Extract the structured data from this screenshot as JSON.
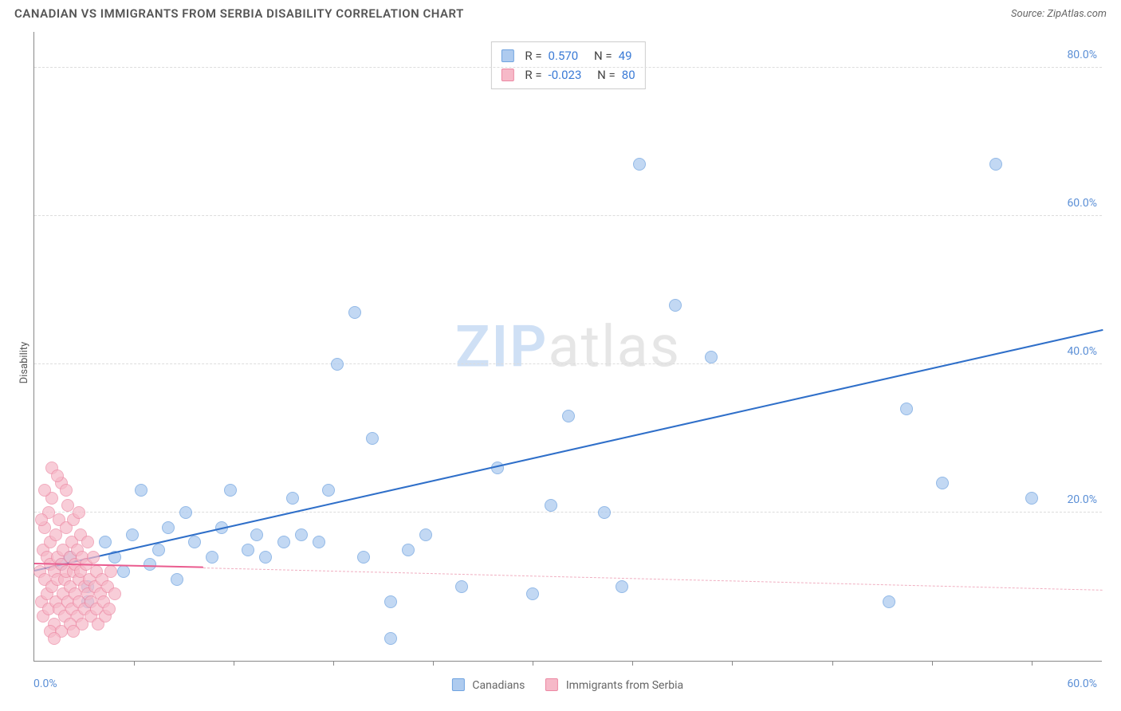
{
  "title": "CANADIAN VS IMMIGRANTS FROM SERBIA DISABILITY CORRELATION CHART",
  "source": "Source: ZipAtlas.com",
  "ylabel": "Disability",
  "watermark": {
    "zip": "ZIP",
    "atlas": "atlas"
  },
  "chart": {
    "type": "scatter",
    "background_color": "#ffffff",
    "grid_color": "#dddddd",
    "axis_color": "#888888",
    "marker_radius": 8,
    "marker_stroke_width": 1.2,
    "xlim": [
      0,
      60
    ],
    "ylim": [
      0,
      85
    ],
    "yticks": [
      20,
      40,
      60,
      80
    ],
    "ytick_labels": [
      "20.0%",
      "40.0%",
      "60.0%",
      "80.0%"
    ],
    "x_origin_label": "0.0%",
    "x_end_label": "60.0%",
    "xticks_minor": [
      5.6,
      11.2,
      16.8,
      22.4,
      28.0,
      33.6,
      39.2,
      44.8,
      50.4,
      56.0
    ],
    "tick_color": "#5b8fd6",
    "tick_fontsize": 14,
    "series": [
      {
        "name": "Canadians",
        "fill": "#aecbef",
        "stroke": "#6fa3e0",
        "opacity": 0.75,
        "trend": {
          "x1": 0,
          "y1": 12,
          "x2": 60,
          "y2": 44.5,
          "color": "#2f6fc9",
          "style": "solid",
          "width": 2
        },
        "r_value": "0.570",
        "n_value": "49",
        "points": [
          [
            1.5,
            13
          ],
          [
            2,
            14
          ],
          [
            3,
            10
          ],
          [
            3,
            8
          ],
          [
            4,
            16
          ],
          [
            4.5,
            14
          ],
          [
            5,
            12
          ],
          [
            5.5,
            17
          ],
          [
            6,
            23
          ],
          [
            6.5,
            13
          ],
          [
            7,
            15
          ],
          [
            7.5,
            18
          ],
          [
            8,
            11
          ],
          [
            8.5,
            20
          ],
          [
            9,
            16
          ],
          [
            10,
            14
          ],
          [
            10.5,
            18
          ],
          [
            11,
            23
          ],
          [
            12,
            15
          ],
          [
            12.5,
            17
          ],
          [
            13,
            14
          ],
          [
            14,
            16
          ],
          [
            14.5,
            22
          ],
          [
            15,
            17
          ],
          [
            16,
            16
          ],
          [
            16.5,
            23
          ],
          [
            17,
            40
          ],
          [
            18,
            47
          ],
          [
            18.5,
            14
          ],
          [
            19,
            30
          ],
          [
            20,
            8
          ],
          [
            20,
            3
          ],
          [
            21,
            15
          ],
          [
            22,
            17
          ],
          [
            24,
            10
          ],
          [
            26,
            26
          ],
          [
            28,
            9
          ],
          [
            29,
            21
          ],
          [
            30,
            33
          ],
          [
            32,
            20
          ],
          [
            33,
            10
          ],
          [
            34,
            67
          ],
          [
            36,
            48
          ],
          [
            38,
            41
          ],
          [
            49,
            34
          ],
          [
            51,
            24
          ],
          [
            54,
            67
          ],
          [
            56,
            22
          ],
          [
            48,
            8
          ]
        ]
      },
      {
        "name": "Immigrants from Serbia",
        "fill": "#f6b9c8",
        "stroke": "#ec88a3",
        "opacity": 0.7,
        "trend_solid": {
          "x1": 0,
          "y1": 13,
          "x2": 9.5,
          "y2": 12.5,
          "color": "#ea5c8f",
          "style": "solid",
          "width": 2
        },
        "trend": {
          "x1": 9.5,
          "y1": 12.5,
          "x2": 60,
          "y2": 9.5,
          "color": "#f0aec0",
          "style": "dash",
          "width": 1.5
        },
        "r_value": "-0.023",
        "n_value": "80",
        "points": [
          [
            0.3,
            12
          ],
          [
            0.4,
            8
          ],
          [
            0.5,
            15
          ],
          [
            0.5,
            6
          ],
          [
            0.6,
            18
          ],
          [
            0.6,
            11
          ],
          [
            0.7,
            14
          ],
          [
            0.7,
            9
          ],
          [
            0.8,
            20
          ],
          [
            0.8,
            7
          ],
          [
            0.9,
            13
          ],
          [
            0.9,
            16
          ],
          [
            1.0,
            10
          ],
          [
            1.0,
            22
          ],
          [
            1.1,
            12
          ],
          [
            1.1,
            5
          ],
          [
            1.2,
            17
          ],
          [
            1.2,
            8
          ],
          [
            1.3,
            14
          ],
          [
            1.3,
            11
          ],
          [
            1.4,
            19
          ],
          [
            1.4,
            7
          ],
          [
            1.5,
            13
          ],
          [
            1.5,
            24
          ],
          [
            1.6,
            9
          ],
          [
            1.6,
            15
          ],
          [
            1.7,
            11
          ],
          [
            1.7,
            6
          ],
          [
            1.8,
            18
          ],
          [
            1.8,
            12
          ],
          [
            1.9,
            8
          ],
          [
            1.9,
            21
          ],
          [
            2.0,
            14
          ],
          [
            2.0,
            10
          ],
          [
            2.1,
            16
          ],
          [
            2.1,
            7
          ],
          [
            2.2,
            12
          ],
          [
            2.2,
            19
          ],
          [
            2.3,
            9
          ],
          [
            2.3,
            13
          ],
          [
            2.4,
            6
          ],
          [
            2.4,
            15
          ],
          [
            2.5,
            11
          ],
          [
            2.5,
            8
          ],
          [
            2.6,
            17
          ],
          [
            2.6,
            12
          ],
          [
            2.7,
            5
          ],
          [
            2.7,
            14
          ],
          [
            2.8,
            10
          ],
          [
            2.8,
            7
          ],
          [
            2.9,
            13
          ],
          [
            3.0,
            9
          ],
          [
            3.0,
            16
          ],
          [
            3.1,
            11
          ],
          [
            3.2,
            8
          ],
          [
            3.2,
            6
          ],
          [
            3.3,
            14
          ],
          [
            3.4,
            10
          ],
          [
            3.5,
            7
          ],
          [
            3.5,
            12
          ],
          [
            3.6,
            5
          ],
          [
            3.7,
            9
          ],
          [
            3.8,
            11
          ],
          [
            3.9,
            8
          ],
          [
            4.0,
            6
          ],
          [
            4.1,
            10
          ],
          [
            4.2,
            7
          ],
          [
            4.3,
            12
          ],
          [
            4.5,
            9
          ],
          [
            1.0,
            26
          ],
          [
            1.3,
            25
          ],
          [
            0.9,
            4
          ],
          [
            1.5,
            4
          ],
          [
            2.0,
            5
          ],
          [
            0.6,
            23
          ],
          [
            1.8,
            23
          ],
          [
            2.5,
            20
          ],
          [
            0.4,
            19
          ],
          [
            1.1,
            3
          ],
          [
            2.2,
            4
          ]
        ]
      }
    ]
  },
  "stat_legend": {
    "r_label": "R =",
    "n_label": "N ="
  },
  "bottom_legend": {
    "canadians": "Canadians",
    "immigrants": "Immigrants from Serbia"
  }
}
